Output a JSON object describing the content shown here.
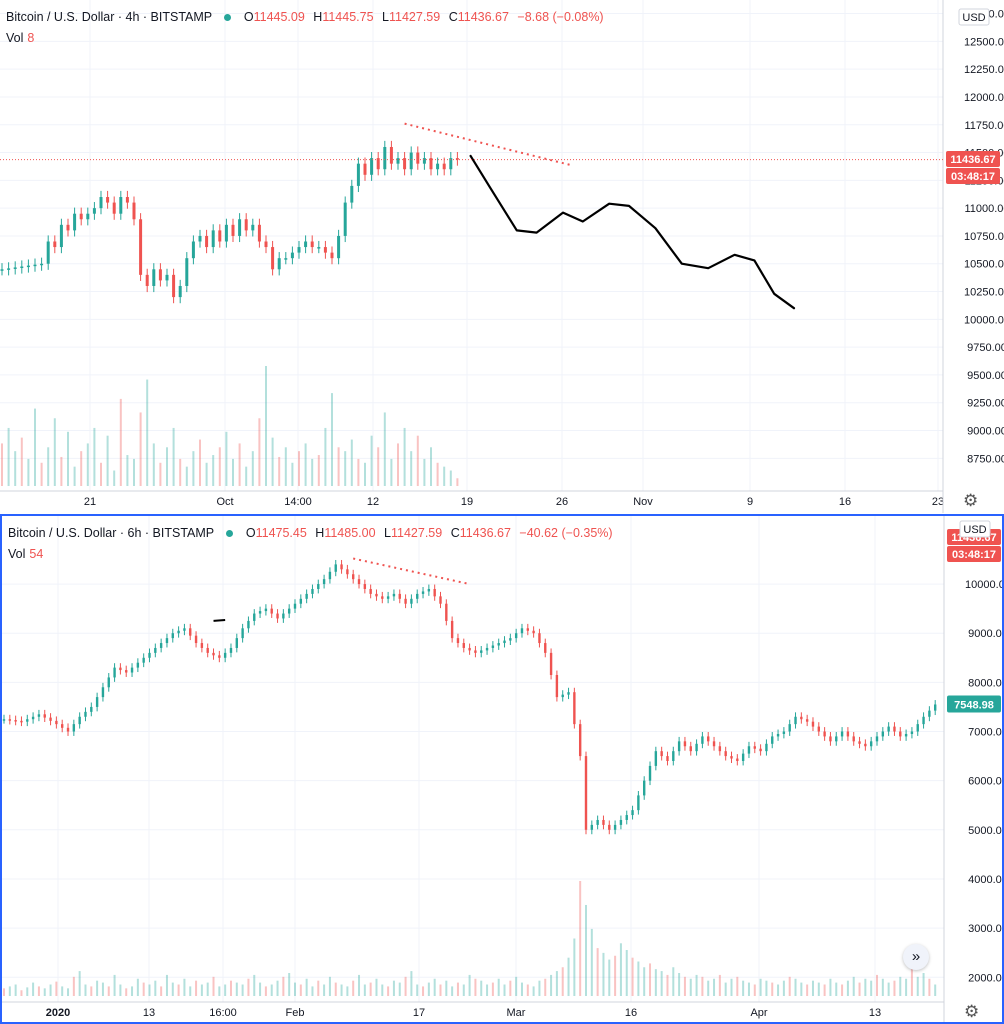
{
  "colors": {
    "up": "#26a69a",
    "down": "#ef5350",
    "line": "#000000",
    "trend": "#ef5350"
  },
  "chart_data": [
    {
      "type": "candlestick",
      "symbol": "Bitcoin / U.S. Dollar",
      "interval": "4h",
      "exchange": "BITSTAMP",
      "ohlc": {
        "o": "11445.09",
        "h": "11445.75",
        "l": "11427.59",
        "c": "11436.67",
        "chg": "−8.68 (−0.08%)"
      },
      "volume_label": "Vol",
      "volume_value": "8",
      "currency": "USD",
      "price_ticks": [
        12750,
        12500,
        12250,
        12000,
        11750,
        11500,
        11250,
        11000,
        10750,
        10500,
        10250,
        10000,
        9750,
        9500,
        9250,
        9000,
        8750
      ],
      "ylim": [
        8600,
        12800
      ],
      "time_labels": [
        "21",
        "Oct",
        "14:00",
        "12",
        "19",
        "26",
        "Nov",
        "9",
        "16",
        "23"
      ],
      "last_price": "11436.67",
      "last_price_value": 11436.67,
      "countdown": "03:48:17",
      "series": [
        {
          "points": [
            [
              0,
              10450
            ],
            [
              6,
              10500
            ],
            [
              7,
              10700
            ],
            [
              8,
              10650
            ],
            [
              9,
              10850
            ],
            [
              10,
              10800
            ],
            [
              11,
              10950
            ],
            [
              12,
              10900
            ],
            [
              13,
              10950
            ],
            [
              14,
              11000
            ],
            [
              15,
              11100
            ],
            [
              16,
              11050
            ],
            [
              17,
              10950
            ],
            [
              18,
              11100
            ],
            [
              19,
              11050
            ],
            [
              20,
              10900
            ],
            [
              21,
              10400
            ],
            [
              22,
              10300
            ],
            [
              23,
              10450
            ],
            [
              24,
              10350
            ],
            [
              25,
              10400
            ],
            [
              26,
              10200
            ],
            [
              27,
              10300
            ],
            [
              28,
              10550
            ],
            [
              29,
              10700
            ],
            [
              30,
              10750
            ],
            [
              31,
              10650
            ],
            [
              32,
              10800
            ],
            [
              33,
              10700
            ],
            [
              34,
              10850
            ],
            [
              35,
              10750
            ],
            [
              36,
              10900
            ],
            [
              37,
              10800
            ],
            [
              38,
              10850
            ],
            [
              39,
              10700
            ],
            [
              40,
              10650
            ],
            [
              41,
              10450
            ],
            [
              42,
              10550
            ],
            [
              43,
              10550
            ],
            [
              44,
              10600
            ],
            [
              45,
              10650
            ],
            [
              46,
              10700
            ],
            [
              47,
              10650
            ],
            [
              48,
              10650
            ],
            [
              49,
              10600
            ],
            [
              50,
              10550
            ],
            [
              51,
              10750
            ],
            [
              52,
              11050
            ],
            [
              53,
              11200
            ],
            [
              54,
              11400
            ],
            [
              55,
              11300
            ],
            [
              56,
              11450
            ],
            [
              57,
              11350
            ],
            [
              58,
              11550
            ],
            [
              59,
              11400
            ],
            [
              60,
              11450
            ],
            [
              61,
              11350
            ],
            [
              62,
              11500
            ],
            [
              63,
              11400
            ],
            [
              64,
              11450
            ],
            [
              65,
              11350
            ],
            [
              66,
              11400
            ],
            [
              67,
              11350
            ],
            [
              68,
              11450
            ],
            [
              69,
              11436.67
            ]
          ]
        }
      ],
      "forecast_path": [
        [
          71,
          11470
        ],
        [
          74,
          11180
        ],
        [
          78,
          10800
        ],
        [
          81,
          10780
        ],
        [
          85,
          10960
        ],
        [
          88,
          10880
        ],
        [
          92,
          11040
        ],
        [
          95,
          11020
        ],
        [
          99,
          10820
        ],
        [
          103,
          10500
        ],
        [
          107,
          10460
        ],
        [
          111,
          10580
        ],
        [
          114,
          10530
        ],
        [
          117,
          10230
        ],
        [
          120,
          10100
        ]
      ],
      "trendline": [
        [
          61,
          11760
        ],
        [
          86,
          11390
        ]
      ],
      "volumes": [
        22,
        30,
        18,
        25,
        14,
        40,
        12,
        20,
        35,
        15,
        28,
        10,
        18,
        22,
        30,
        12,
        26,
        8,
        45,
        16,
        14,
        38,
        55,
        22,
        12,
        20,
        30,
        14,
        10,
        18,
        24,
        12,
        16,
        20,
        28,
        14,
        22,
        10,
        18,
        35,
        62,
        25,
        15,
        20,
        12,
        18,
        22,
        14,
        16,
        30,
        48,
        20,
        18,
        24,
        14,
        12,
        26,
        20,
        38,
        14,
        22,
        30,
        18,
        26,
        14,
        20,
        12,
        10,
        8,
        4
      ]
    },
    {
      "type": "candlestick",
      "symbol": "Bitcoin / U.S. Dollar",
      "interval": "6h",
      "exchange": "BITSTAMP",
      "ohlc": {
        "o": "11475.45",
        "h": "11485.00",
        "l": "11427.59",
        "c": "11436.67",
        "chg": "−40.62 (−0.35%)"
      },
      "volume_label": "Vol",
      "volume_value": "54",
      "currency": "USD",
      "price_ticks": [
        10000,
        9000,
        8000,
        7000,
        6000,
        5000,
        4000,
        3000,
        2000
      ],
      "ylim": [
        1700,
        11100
      ],
      "time_labels": [
        "2020",
        "13",
        "16:00",
        "Feb",
        "17",
        "Mar",
        "16",
        "Apr",
        "13"
      ],
      "last_price": "11436.67",
      "last_price_value": 11436.67,
      "countdown": "03:48:17",
      "current_price": "7548.98",
      "current_price_value": 7548.98,
      "series": [
        {
          "points": [
            [
              0,
              7250
            ],
            [
              3,
              7200
            ],
            [
              6,
              7350
            ],
            [
              9,
              7150
            ],
            [
              11,
              7000
            ],
            [
              13,
              7300
            ],
            [
              15,
              7500
            ],
            [
              17,
              7900
            ],
            [
              19,
              8300
            ],
            [
              21,
              8200
            ],
            [
              23,
              8400
            ],
            [
              25,
              8600
            ],
            [
              27,
              8800
            ],
            [
              29,
              9000
            ],
            [
              31,
              9100
            ],
            [
              33,
              8800
            ],
            [
              35,
              8600
            ],
            [
              37,
              8500
            ],
            [
              39,
              8700
            ],
            [
              41,
              9100
            ],
            [
              43,
              9400
            ],
            [
              45,
              9500
            ],
            [
              47,
              9300
            ],
            [
              49,
              9500
            ],
            [
              51,
              9700
            ],
            [
              53,
              9900
            ],
            [
              55,
              10100
            ],
            [
              57,
              10400
            ],
            [
              59,
              10200
            ],
            [
              61,
              10000
            ],
            [
              63,
              9800
            ],
            [
              65,
              9700
            ],
            [
              67,
              9800
            ],
            [
              69,
              9600
            ],
            [
              71,
              9800
            ],
            [
              73,
              9900
            ],
            [
              75,
              9600
            ],
            [
              77,
              8900
            ],
            [
              79,
              8700
            ],
            [
              81,
              8600
            ],
            [
              83,
              8700
            ],
            [
              85,
              8800
            ],
            [
              87,
              8900
            ],
            [
              89,
              9100
            ],
            [
              91,
              9000
            ],
            [
              93,
              8600
            ],
            [
              95,
              7700
            ],
            [
              97,
              7800
            ],
            [
              99,
              6500
            ],
            [
              100,
              5000
            ],
            [
              102,
              5200
            ],
            [
              104,
              5000
            ],
            [
              106,
              5200
            ],
            [
              108,
              5400
            ],
            [
              110,
              6000
            ],
            [
              112,
              6600
            ],
            [
              114,
              6400
            ],
            [
              116,
              6800
            ],
            [
              118,
              6600
            ],
            [
              120,
              6900
            ],
            [
              122,
              6700
            ],
            [
              124,
              6500
            ],
            [
              126,
              6400
            ],
            [
              128,
              6700
            ],
            [
              130,
              6600
            ],
            [
              132,
              6900
            ],
            [
              134,
              7000
            ],
            [
              136,
              7300
            ],
            [
              138,
              7200
            ],
            [
              140,
              7000
            ],
            [
              142,
              6800
            ],
            [
              144,
              7000
            ],
            [
              146,
              6800
            ],
            [
              148,
              6700
            ],
            [
              150,
              6900
            ],
            [
              152,
              7100
            ],
            [
              154,
              6900
            ],
            [
              156,
              7000
            ],
            [
              158,
              7300
            ],
            [
              160,
              7550
            ]
          ]
        }
      ],
      "trendline": [
        [
          60,
          10520
        ],
        [
          80,
          10000
        ]
      ],
      "stray_mark": [
        [
          36,
          9250
        ],
        [
          38,
          9270
        ]
      ],
      "volumes": [
        8,
        10,
        12,
        6,
        9,
        14,
        10,
        8,
        12,
        15,
        10,
        8,
        20,
        26,
        12,
        10,
        16,
        14,
        10,
        22,
        12,
        8,
        10,
        18,
        14,
        12,
        16,
        10,
        22,
        14,
        12,
        18,
        10,
        16,
        12,
        14,
        20,
        10,
        12,
        16,
        14,
        12,
        18,
        22,
        14,
        10,
        12,
        16,
        20,
        24,
        14,
        12,
        18,
        10,
        16,
        12,
        20,
        14,
        12,
        10,
        16,
        22,
        12,
        14,
        18,
        12,
        10,
        16,
        14,
        20,
        26,
        12,
        10,
        14,
        18,
        12,
        16,
        10,
        14,
        12,
        22,
        18,
        16,
        12,
        14,
        18,
        12,
        16,
        20,
        14,
        12,
        10,
        16,
        18,
        22,
        26,
        30,
        40,
        60,
        120,
        95,
        70,
        50,
        45,
        38,
        42,
        55,
        48,
        40,
        36,
        30,
        34,
        28,
        26,
        22,
        30,
        24,
        20,
        18,
        22,
        20,
        16,
        18,
        22,
        14,
        18,
        20,
        16,
        14,
        12,
        18,
        16,
        14,
        12,
        16,
        20,
        18,
        14,
        12,
        16,
        14,
        12,
        18,
        14,
        12,
        16,
        20,
        14,
        18,
        16,
        22,
        18,
        14,
        16,
        20,
        18,
        34,
        20,
        24,
        18,
        12
      ]
    }
  ],
  "ui": {
    "settings_icon": "gear-icon",
    "jump_icon": "double-chevron-right-icon",
    "jump_glyph": "»"
  }
}
